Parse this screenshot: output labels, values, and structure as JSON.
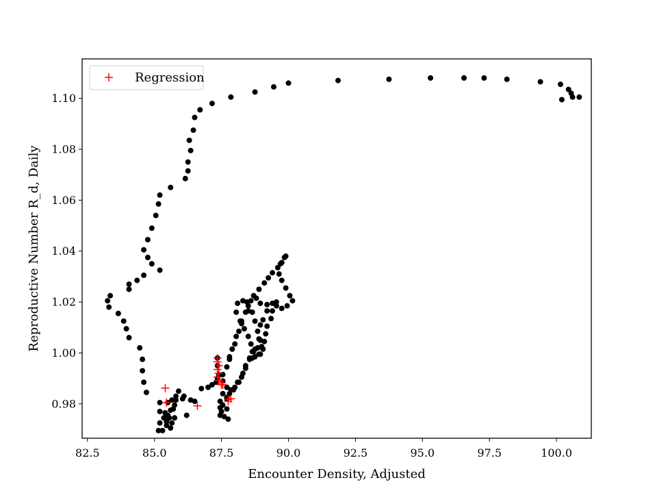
{
  "chart_data": {
    "type": "scatter",
    "title": "",
    "xlabel": "Encounter Density, Adjusted",
    "ylabel": "Reproductive Number R_d, Daily",
    "xlim": [
      82.3,
      101.3
    ],
    "ylim": [
      0.9665,
      1.1155
    ],
    "grid": false,
    "legend_position": "top-left",
    "x_ticks": [
      82.5,
      85.0,
      87.5,
      90.0,
      92.5,
      95.0,
      97.5,
      100.0
    ],
    "x_tick_labels": [
      "82.5",
      "85.0",
      "87.5",
      "90.0",
      "92.5",
      "95.0",
      "97.5",
      "100.0"
    ],
    "y_ticks": [
      0.98,
      1.0,
      1.02,
      1.04,
      1.06,
      1.08,
      1.1
    ],
    "y_tick_labels": [
      "0.98",
      "1.00",
      "1.02",
      "1.04",
      "1.06",
      "1.08",
      "1.10"
    ],
    "colors": {
      "observed": "#000000",
      "regression": "#ff0000"
    },
    "series": [
      {
        "marker": "dot",
        "color": "#000000",
        "points": [
          [
            100.85,
            1.1005
          ],
          [
            100.6,
            1.1005
          ],
          [
            100.55,
            1.102
          ],
          [
            100.45,
            1.1035
          ],
          [
            100.2,
            1.0995
          ],
          [
            100.15,
            1.1055
          ],
          [
            99.4,
            1.1065
          ],
          [
            98.15,
            1.1075
          ],
          [
            97.3,
            1.108
          ],
          [
            96.55,
            1.108
          ],
          [
            95.3,
            1.108
          ],
          [
            93.75,
            1.1075
          ],
          [
            91.85,
            1.107
          ],
          [
            90.0,
            1.106
          ],
          [
            89.45,
            1.1045
          ],
          [
            88.75,
            1.1025
          ],
          [
            87.85,
            1.1005
          ],
          [
            87.15,
            1.098
          ],
          [
            86.7,
            1.0955
          ],
          [
            86.5,
            1.0925
          ],
          [
            86.45,
            1.0875
          ],
          [
            86.3,
            1.0835
          ],
          [
            86.35,
            1.0795
          ],
          [
            86.25,
            1.075
          ],
          [
            86.25,
            1.0715
          ],
          [
            86.15,
            1.0685
          ],
          [
            85.6,
            1.065
          ],
          [
            85.2,
            1.062
          ],
          [
            85.15,
            1.0585
          ],
          [
            85.05,
            1.054
          ],
          [
            84.9,
            1.049
          ],
          [
            84.75,
            1.0445
          ],
          [
            84.6,
            1.0405
          ],
          [
            84.75,
            1.0375
          ],
          [
            84.9,
            1.035
          ],
          [
            85.2,
            1.0325
          ],
          [
            84.6,
            1.0305
          ],
          [
            84.35,
            1.0285
          ],
          [
            84.05,
            1.027
          ],
          [
            84.05,
            1.025
          ],
          [
            83.35,
            1.0225
          ],
          [
            83.25,
            1.0205
          ],
          [
            83.3,
            1.018
          ],
          [
            83.65,
            1.0155
          ],
          [
            83.85,
            1.0125
          ],
          [
            83.95,
            1.0095
          ],
          [
            84.05,
            1.006
          ],
          [
            84.45,
            1.002
          ],
          [
            84.55,
            0.9975
          ],
          [
            84.55,
            0.993
          ],
          [
            84.6,
            0.9885
          ],
          [
            84.7,
            0.9845
          ],
          [
            85.2,
            0.9805
          ],
          [
            85.5,
            0.9805
          ],
          [
            85.65,
            0.9815
          ],
          [
            85.8,
            0.983
          ],
          [
            85.9,
            0.985
          ],
          [
            86.1,
            0.983
          ],
          [
            85.75,
            0.9795
          ],
          [
            85.6,
            0.9775
          ],
          [
            85.5,
            0.9755
          ],
          [
            85.45,
            0.973
          ],
          [
            85.6,
            0.9705
          ],
          [
            85.45,
            0.9715
          ],
          [
            85.3,
            0.9695
          ],
          [
            85.15,
            0.9695
          ],
          [
            85.2,
            0.9725
          ],
          [
            85.35,
            0.9745
          ],
          [
            85.2,
            0.977
          ],
          [
            85.4,
            0.9765
          ],
          [
            85.55,
            0.9745
          ],
          [
            85.65,
            0.9725
          ],
          [
            85.75,
            0.9745
          ],
          [
            85.7,
            0.978
          ],
          [
            85.8,
            0.9815
          ],
          [
            86.05,
            0.982
          ],
          [
            86.2,
            0.9755
          ],
          [
            86.35,
            0.9815
          ],
          [
            86.5,
            0.981
          ],
          [
            86.75,
            0.986
          ],
          [
            87.0,
            0.9865
          ],
          [
            87.15,
            0.9875
          ],
          [
            87.3,
            0.9885
          ],
          [
            87.35,
            0.99
          ],
          [
            87.55,
            0.9915
          ],
          [
            87.7,
            0.9945
          ],
          [
            87.8,
            0.9975
          ],
          [
            87.9,
            1.0015
          ],
          [
            88.05,
            1.0065
          ],
          [
            88.25,
            1.0115
          ],
          [
            88.4,
            1.016
          ],
          [
            88.45,
            1.02
          ],
          [
            88.7,
            1.0225
          ],
          [
            88.9,
            1.025
          ],
          [
            89.1,
            1.0275
          ],
          [
            89.25,
            1.0295
          ],
          [
            89.4,
            1.0315
          ],
          [
            89.6,
            1.0335
          ],
          [
            89.75,
            1.0355
          ],
          [
            89.85,
            1.0375
          ],
          [
            89.9,
            1.038
          ],
          [
            89.7,
            1.035
          ],
          [
            89.65,
            1.031
          ],
          [
            89.75,
            1.0285
          ],
          [
            89.9,
            1.0255
          ],
          [
            90.05,
            1.0225
          ],
          [
            90.15,
            1.0205
          ],
          [
            89.95,
            1.0185
          ],
          [
            89.75,
            1.0175
          ],
          [
            89.55,
            1.0185
          ],
          [
            89.4,
            1.0165
          ],
          [
            89.35,
            1.0135
          ],
          [
            89.2,
            1.0105
          ],
          [
            89.15,
            1.0075
          ],
          [
            89.1,
            1.0045
          ],
          [
            89.05,
            1.0015
          ],
          [
            88.95,
            0.9995
          ],
          [
            88.85,
            1.002
          ],
          [
            88.7,
            1.0005
          ],
          [
            88.55,
            0.998
          ],
          [
            88.4,
            0.994
          ],
          [
            88.25,
            0.9905
          ],
          [
            88.1,
            0.9885
          ],
          [
            87.95,
            0.9855
          ],
          [
            87.8,
            0.984
          ],
          [
            87.7,
            0.982
          ],
          [
            87.7,
            0.978
          ],
          [
            87.75,
            0.974
          ],
          [
            87.6,
            0.975
          ],
          [
            87.45,
            0.9755
          ],
          [
            87.45,
            0.9785
          ],
          [
            87.45,
            0.981
          ],
          [
            87.55,
            0.984
          ],
          [
            87.7,
            0.9865
          ],
          [
            87.55,
            0.989
          ],
          [
            87.4,
            0.9915
          ],
          [
            87.35,
            0.995
          ],
          [
            87.35,
            0.998
          ],
          [
            87.8,
            0.9985
          ],
          [
            88.0,
            1.0035
          ],
          [
            88.15,
            1.0085
          ],
          [
            88.25,
            1.0125
          ],
          [
            88.5,
            1.0165
          ],
          [
            88.6,
            1.0205
          ],
          [
            88.8,
            1.0215
          ],
          [
            88.95,
            1.0195
          ],
          [
            89.2,
            1.019
          ],
          [
            89.4,
            1.0195
          ],
          [
            89.55,
            1.02
          ],
          [
            89.2,
            1.0165
          ],
          [
            89.05,
            1.013
          ],
          [
            88.95,
            1.011
          ],
          [
            88.9,
            1.0055
          ],
          [
            88.75,
            1.0015
          ],
          [
            88.65,
            0.998
          ],
          [
            88.75,
            0.9985
          ],
          [
            88.9,
            0.9995
          ],
          [
            89.0,
            1.0025
          ],
          [
            88.95,
            1.005
          ],
          [
            88.85,
            1.0085
          ],
          [
            88.75,
            1.0125
          ],
          [
            88.65,
            1.016
          ],
          [
            88.5,
            1.0185
          ],
          [
            88.3,
            1.0205
          ],
          [
            88.1,
            1.0195
          ],
          [
            88.05,
            1.016
          ],
          [
            88.2,
            1.0125
          ],
          [
            88.35,
            1.0095
          ],
          [
            88.5,
            1.0065
          ],
          [
            88.6,
            1.0035
          ],
          [
            88.65,
            1.0005
          ],
          [
            88.55,
            0.9975
          ],
          [
            88.4,
            0.995
          ],
          [
            88.3,
            0.992
          ],
          [
            88.15,
            0.9885
          ],
          [
            88.0,
            0.9865
          ],
          [
            87.85,
            0.9855
          ],
          [
            87.7,
            0.9825
          ],
          [
            87.55,
            0.9795
          ],
          [
            87.5,
            0.977
          ]
        ]
      },
      {
        "name": "Regression",
        "marker": "plus",
        "color": "#ff0000",
        "points": [
          [
            85.4,
            0.9862
          ],
          [
            85.45,
            0.9805
          ],
          [
            86.6,
            0.9792
          ],
          [
            87.35,
            0.998
          ],
          [
            87.35,
            0.9965
          ],
          [
            87.4,
            0.995
          ],
          [
            87.35,
            0.9935
          ],
          [
            87.4,
            0.992
          ],
          [
            87.35,
            0.9905
          ],
          [
            87.4,
            0.989
          ],
          [
            87.5,
            0.9875
          ],
          [
            87.5,
            0.9882
          ],
          [
            87.55,
            0.9875
          ],
          [
            87.75,
            0.9818
          ],
          [
            87.85,
            0.982
          ],
          [
            87.75,
            0.981
          ]
        ]
      }
    ]
  }
}
